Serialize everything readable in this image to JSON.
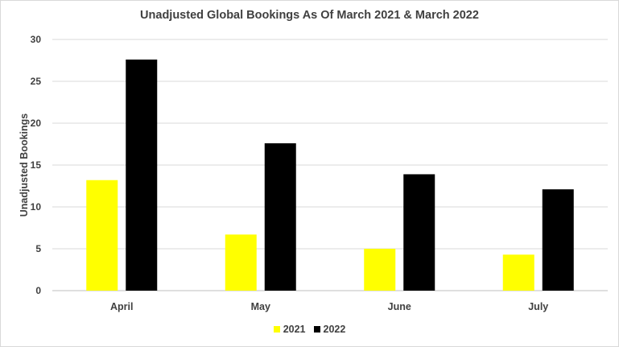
{
  "chart_data": {
    "type": "bar",
    "title": "Unadjusted Global Bookings As Of March 2021 & March 2022",
    "xlabel": "",
    "ylabel": "Unadjusted Bookings",
    "categories": [
      "April",
      "May",
      "June",
      "July"
    ],
    "series": [
      {
        "name": "2021",
        "values": [
          13.2,
          6.7,
          5.0,
          4.3
        ],
        "color": "#ffff00"
      },
      {
        "name": "2022",
        "values": [
          27.6,
          17.6,
          13.9,
          12.1
        ],
        "color": "#000000"
      }
    ],
    "ylim": [
      0,
      30
    ],
    "yticks": [
      "0",
      "5",
      "10",
      "15",
      "20",
      "25",
      "30"
    ],
    "grid": true,
    "legend_position": "bottom"
  }
}
